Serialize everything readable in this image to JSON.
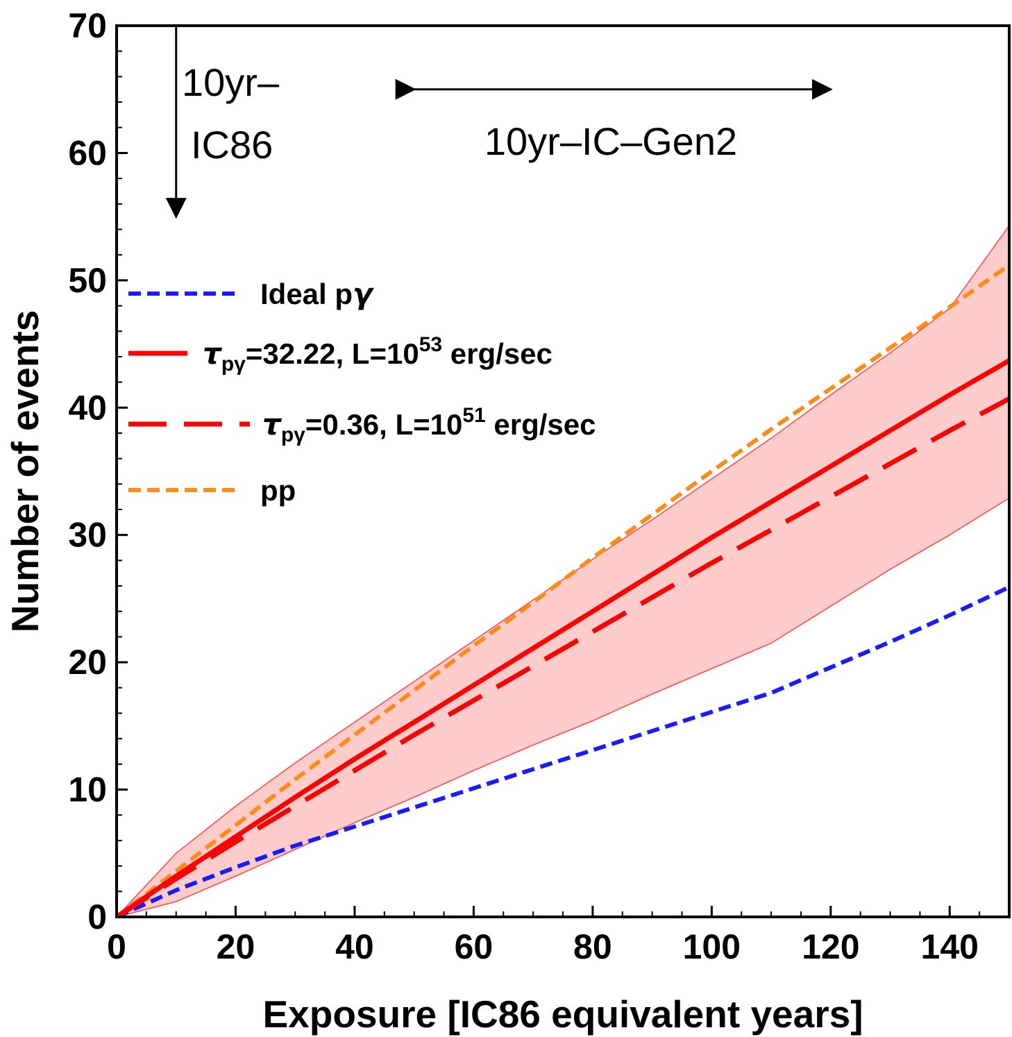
{
  "chart_data": {
    "type": "line",
    "xlabel": "Exposure [IC86 equivalent years]",
    "ylabel": "Number of events",
    "xlim": [
      0,
      150
    ],
    "ylim": [
      0,
      70
    ],
    "xticks": [
      "0",
      "20",
      "40",
      "60",
      "80",
      "100",
      "120",
      "140"
    ],
    "yticks": [
      "0",
      "10",
      "20",
      "30",
      "40",
      "50",
      "60",
      "70"
    ],
    "x": [
      0,
      10,
      20,
      30,
      40,
      50,
      60,
      70,
      80,
      90,
      100,
      110,
      120,
      130,
      140,
      150
    ],
    "series": [
      {
        "name": "Ideal pγ",
        "label_parts": {
          "pre": "Ideal p",
          "greek": "γ"
        },
        "style": "dashed",
        "color": "#1a1aff",
        "values": [
          0,
          2.1,
          3.9,
          5.6,
          7.1,
          8.6,
          10.1,
          11.6,
          13.1,
          14.6,
          16.1,
          17.6,
          19.6,
          21.6,
          23.7,
          25.9
        ]
      },
      {
        "name": "τpγ=32.22, L=10^53 erg/sec",
        "label_parts": {
          "tau": "τ",
          "sub": "pγ",
          "mid": "=32.22, L=10",
          "sup": "53",
          "post": " erg/sec"
        },
        "style": "solid",
        "color": "#ff0000",
        "values": [
          0,
          3.2,
          6.3,
          9.4,
          12.4,
          15.3,
          18.2,
          21.1,
          24.0,
          26.9,
          29.8,
          32.6,
          35.4,
          38.2,
          41.0,
          43.7
        ]
      },
      {
        "name": "τpγ=0.36, L=10^51 erg/sec",
        "label_parts": {
          "tau": "τ",
          "sub": "pγ",
          "mid": "=0.36, L=10",
          "sup": "51",
          "post": " erg/sec"
        },
        "style": "longdash",
        "color": "#ff0000",
        "values": [
          0,
          3.0,
          5.9,
          8.7,
          11.5,
          14.3,
          17.0,
          19.7,
          22.4,
          25.1,
          27.8,
          30.4,
          33.0,
          35.6,
          38.2,
          40.7
        ]
      },
      {
        "name": "pp",
        "label_parts": {
          "pre": "pp"
        },
        "style": "dashed",
        "color": "#ff8c1a",
        "values": [
          0,
          3.6,
          7.2,
          10.8,
          14.3,
          17.8,
          21.3,
          24.7,
          28.2,
          31.6,
          35.0,
          38.3,
          41.5,
          44.7,
          47.9,
          51.2
        ]
      }
    ],
    "band": {
      "name": "uncertainty band",
      "color": "#ffcccc",
      "edge_color": "#ff4444",
      "upper": [
        0,
        5.0,
        8.7,
        12.1,
        15.3,
        18.5,
        21.7,
        24.9,
        28.1,
        31.2,
        34.4,
        37.6,
        41.0,
        44.3,
        47.8,
        54.3
      ],
      "lower": [
        0,
        1.2,
        3.2,
        5.3,
        7.4,
        9.4,
        11.5,
        13.5,
        15.4,
        17.5,
        19.5,
        21.5,
        24.4,
        27.3,
        30.0,
        32.9
      ]
    },
    "annotations": [
      {
        "id": "ic86",
        "lines": [
          "10yr–",
          "IC86"
        ],
        "arrow": "down",
        "x": 10,
        "y_from": 70,
        "y_to": 55
      },
      {
        "id": "gen2",
        "lines": [
          "10yr–IC–Gen2"
        ],
        "arrow": "double-horizontal",
        "x_from": 50,
        "x_to": 120,
        "y": 65
      }
    ],
    "legend_position": "left, mid-height",
    "grid": false
  }
}
